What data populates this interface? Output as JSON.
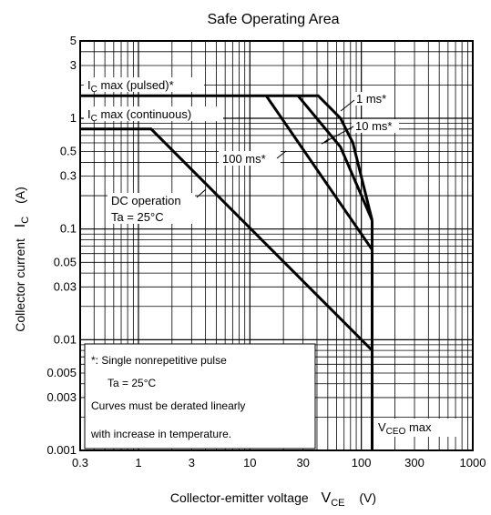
{
  "chart_data": {
    "type": "line",
    "title": "Safe Operating Area",
    "xscale": "log",
    "yscale": "log",
    "xlim": [
      0.3,
      1000
    ],
    "ylim": [
      0.001,
      5
    ],
    "x_ticks": [
      {
        "v": 0.3,
        "label": "0.3"
      },
      {
        "v": 1,
        "label": "1"
      },
      {
        "v": 3,
        "label": "3"
      },
      {
        "v": 10,
        "label": "10"
      },
      {
        "v": 30,
        "label": "30"
      },
      {
        "v": 100,
        "label": "100"
      },
      {
        "v": 300,
        "label": "300"
      },
      {
        "v": 1000,
        "label": "1000"
      }
    ],
    "y_ticks": [
      {
        "v": 5,
        "label": "5"
      },
      {
        "v": 3,
        "label": "3"
      },
      {
        "v": 1,
        "label": "1"
      },
      {
        "v": 0.5,
        "label": "0.5"
      },
      {
        "v": 0.3,
        "label": "0.3"
      },
      {
        "v": 0.1,
        "label": "0.1"
      },
      {
        "v": 0.05,
        "label": "0.05"
      },
      {
        "v": 0.03,
        "label": "0.03"
      },
      {
        "v": 0.01,
        "label": "0.01"
      },
      {
        "v": 0.005,
        "label": "0.005"
      },
      {
        "v": 0.003,
        "label": "0.003"
      },
      {
        "v": 0.001,
        "label": "0.001"
      }
    ],
    "xlabel": {
      "main": "Collector-emitter voltage",
      "sym": "V",
      "sub": "CE",
      "unit": "(V)"
    },
    "ylabel": {
      "main": "Collector current",
      "sym": "I",
      "sub": "C",
      "unit": "(A)"
    },
    "series": [
      {
        "name": "pulsed-limit",
        "points": [
          [
            0.3,
            1.6
          ],
          [
            41,
            1.6
          ],
          [
            65,
            1.0
          ],
          [
            84,
            0.6
          ],
          [
            125,
            0.12
          ]
        ]
      },
      {
        "name": "1ms",
        "points": [
          [
            27,
            1.6
          ],
          [
            65,
            0.55
          ],
          [
            125,
            0.12
          ]
        ]
      },
      {
        "name": "10ms",
        "points": [
          [
            14,
            1.6
          ],
          [
            125,
            0.065
          ]
        ]
      },
      {
        "name": "dc",
        "points": [
          [
            0.3,
            0.8
          ],
          [
            1.3,
            0.8
          ],
          [
            125,
            0.008
          ]
        ]
      },
      {
        "name": "vceo-limit",
        "points": [
          [
            125,
            0.12
          ],
          [
            125,
            0.001
          ]
        ]
      }
    ],
    "annotations": {
      "ic_pulsed": {
        "main": "I",
        "sub": "C",
        "rest": " max (pulsed)*"
      },
      "ic_cont": {
        "main": "I",
        "sub": "C",
        "rest": " max (continuous)"
      },
      "ms1": "1 ms*",
      "ms10": "10 ms*",
      "ms100": "100 ms*",
      "dc_line1": "DC operation",
      "dc_line2": "Ta = 25°C",
      "vceo": {
        "main": "V",
        "sub": "CEO",
        "rest": " max"
      },
      "note_line1": "*:   Single nonrepetitive pulse",
      "note_line2": "Ta = 25°C",
      "note_line3": "Curves must be derated linearly",
      "note_line4": "with increase in temperature."
    }
  }
}
